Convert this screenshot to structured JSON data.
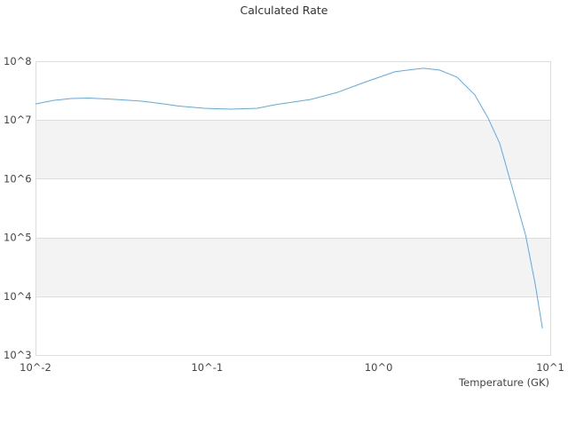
{
  "chart_data": {
    "type": "line",
    "title": "Calculated Rate",
    "xlabel": "Temperature (GK)",
    "ylabel": "",
    "xscale": "log",
    "yscale": "log",
    "xlim": [
      0.01,
      10
    ],
    "ylim": [
      1000,
      100000000
    ],
    "x_tick_labels": [
      "10^-2",
      "10^-1",
      "10^0",
      "10^1"
    ],
    "y_tick_labels": [
      "10^3",
      "10^4",
      "10^5",
      "10^6",
      "10^7",
      "10^8"
    ],
    "grid": "horizontal alternating bands",
    "legend": "none",
    "colors": {
      "line": "#5ea8f0",
      "band": "#f3f3f3",
      "grid": "#dddddd"
    },
    "series": [
      {
        "x": [
          0.01,
          0.0127,
          0.0161,
          0.0204,
          0.0292,
          0.0418,
          0.0562,
          0.0673,
          0.0962,
          0.137,
          0.196,
          0.249,
          0.402,
          0.574,
          0.82,
          1.24,
          1.49,
          1.82,
          2.26,
          2.86,
          3.63,
          4.35,
          5.08,
          6.22,
          7.18,
          8.17,
          9.0
        ],
        "y": [
          18800000,
          21600000,
          23200000,
          23600000,
          22400000,
          20900000,
          18800000,
          17300000,
          15800000,
          15300000,
          15800000,
          18200000,
          22400000,
          29500000,
          43400000,
          66000000,
          70800000,
          75900000,
          70800000,
          53700000,
          26900000,
          10700000,
          3980000,
          490000,
          110000,
          16200,
          2820
        ]
      }
    ]
  }
}
